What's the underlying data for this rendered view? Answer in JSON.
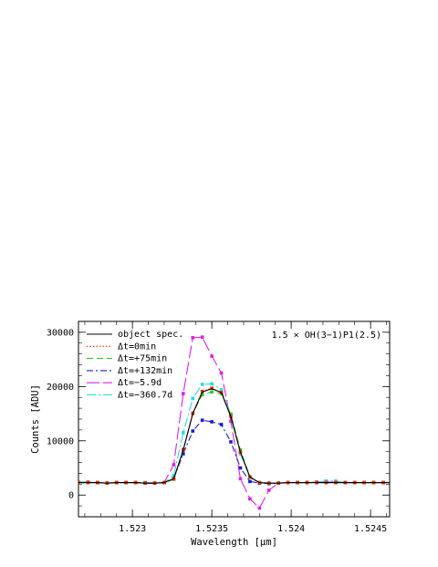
{
  "chart_data": {
    "type": "line",
    "title": "",
    "annotation": "1.5 × OH(3−1)P1(2.5)",
    "xlabel": "Wavelength [μm]",
    "ylabel": "Counts [ADU]",
    "xlim": [
      1.52266,
      1.52462
    ],
    "ylim": [
      -4000,
      32000
    ],
    "xticks": [
      1.523,
      1.5235,
      1.524,
      1.5245
    ],
    "xtick_labels": [
      "1.523",
      "1.5235",
      "1.524",
      "1.5245"
    ],
    "yticks": [
      0,
      10000,
      20000,
      30000
    ],
    "ytick_labels": [
      "0",
      "10000",
      "20000",
      "30000"
    ],
    "legend_position": "top-left",
    "x": [
      1.52266,
      1.52272,
      1.52278,
      1.52284,
      1.5229,
      1.52296,
      1.52302,
      1.52308,
      1.52314,
      1.5232,
      1.52326,
      1.52332,
      1.52338,
      1.52344,
      1.5235,
      1.52356,
      1.52362,
      1.52368,
      1.52374,
      1.5238,
      1.52386,
      1.52392,
      1.52398,
      1.52404,
      1.5241,
      1.52416,
      1.52422,
      1.52428,
      1.52434,
      1.5244,
      1.52446,
      1.52452,
      1.52458,
      1.52464
    ],
    "series": [
      {
        "name": "object spec.",
        "color": "#000000",
        "dash": "",
        "markers": false,
        "values": [
          2300,
          2300,
          2300,
          2200,
          2300,
          2300,
          2300,
          2200,
          2200,
          2300,
          3000,
          8300,
          15000,
          19000,
          19600,
          18900,
          14400,
          7900,
          3300,
          2300,
          2200,
          2200,
          2300,
          2300,
          2300,
          2300,
          2300,
          2300,
          2300,
          2300,
          2300,
          2300,
          2300,
          2300
        ]
      },
      {
        "name": "Δt=0min",
        "color": "#ff2a00",
        "dash": "1.5,2",
        "markers": true,
        "values": [
          2300,
          2300,
          2300,
          2200,
          2300,
          2300,
          2300,
          2200,
          2200,
          2300,
          3000,
          8400,
          15100,
          19100,
          19700,
          18900,
          14500,
          7900,
          3300,
          2300,
          2200,
          2200,
          2300,
          2300,
          2300,
          2300,
          2300,
          2300,
          2300,
          2300,
          2300,
          2300,
          2300,
          2300
        ]
      },
      {
        "name": "Δt=+75min",
        "color": "#22cc22",
        "dash": "7,4",
        "markers": true,
        "values": [
          2300,
          2300,
          2300,
          2200,
          2300,
          2300,
          2300,
          2200,
          2200,
          2300,
          2900,
          8200,
          15000,
          18500,
          19000,
          18700,
          14900,
          8300,
          3400,
          2300,
          2200,
          2200,
          2300,
          2300,
          2300,
          2300,
          2300,
          2300,
          2300,
          2300,
          2300,
          2300,
          2300,
          2300
        ]
      },
      {
        "name": "Δt=+132min",
        "color": "#1a1ad9",
        "dash": "7,3,2,3",
        "markers": true,
        "values": [
          2300,
          2300,
          2300,
          2200,
          2300,
          2300,
          2300,
          2200,
          2200,
          2300,
          3000,
          7600,
          11800,
          13800,
          13500,
          13000,
          9800,
          5000,
          2500,
          2200,
          2100,
          2200,
          2300,
          2300,
          2300,
          2300,
          2300,
          2300,
          2300,
          2300,
          2300,
          2300,
          2300,
          2300
        ]
      },
      {
        "name": "Δt=−5.9d",
        "color": "#e020e0",
        "dash": "14,4",
        "markers": true,
        "values": [
          2400,
          2400,
          2300,
          2200,
          2300,
          2300,
          2300,
          2300,
          2200,
          2300,
          5600,
          18700,
          29000,
          29100,
          25600,
          22500,
          13600,
          3000,
          -700,
          -2400,
          900,
          2200,
          2300,
          2300,
          2300,
          2400,
          2400,
          2400,
          2300,
          2300,
          2300,
          2300,
          2300,
          2300
        ]
      },
      {
        "name": "Δt=−360.7d",
        "color": "#22dddd",
        "dash": "10,3,2,3",
        "markers": true,
        "values": [
          2400,
          2400,
          2300,
          2200,
          2300,
          2300,
          2300,
          2300,
          2200,
          2300,
          3600,
          11500,
          17800,
          20400,
          20500,
          19400,
          14800,
          7600,
          3300,
          2300,
          2200,
          2200,
          2300,
          2300,
          2300,
          2400,
          2600,
          2600,
          2300,
          2300,
          2300,
          2300,
          2300,
          2300
        ]
      }
    ]
  }
}
